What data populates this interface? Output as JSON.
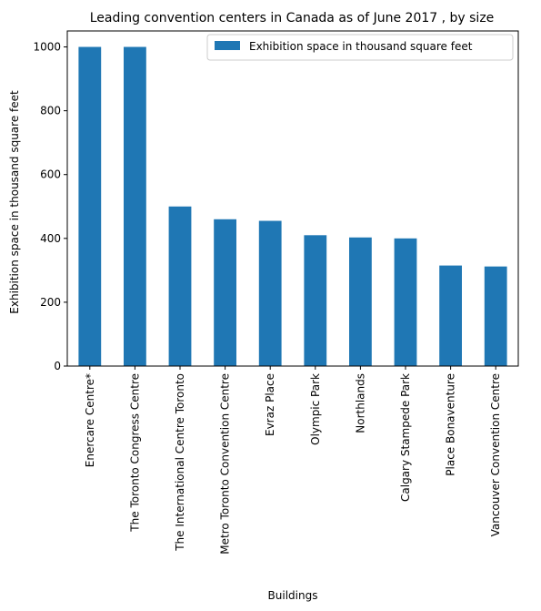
{
  "chart_data": {
    "type": "bar",
    "title": "Leading convention centers in Canada as of June 2017 , by size",
    "xlabel": "Buildings",
    "ylabel": "Exhibition space in thousand square feet",
    "categories": [
      "Enercare Centre*",
      "The Toronto Congress Centre",
      "The International Centre Toronto",
      "Metro Toronto Convention Centre",
      "Evraz Place",
      "Olympic Park",
      "Northlands",
      "Calgary Stampede Park",
      "Place Bonaventure",
      "Vancouver Convention Centre"
    ],
    "series": [
      {
        "name": "Exhibition space in thousand square feet",
        "values": [
          1000,
          1000,
          500,
          460,
          455,
          410,
          403,
          400,
          315,
          312
        ],
        "color": "#1f77b4"
      }
    ],
    "ylim": [
      0,
      1050
    ],
    "yticks": [
      0,
      200,
      400,
      600,
      800,
      1000
    ],
    "grid": false,
    "legend_position": "top-right"
  }
}
